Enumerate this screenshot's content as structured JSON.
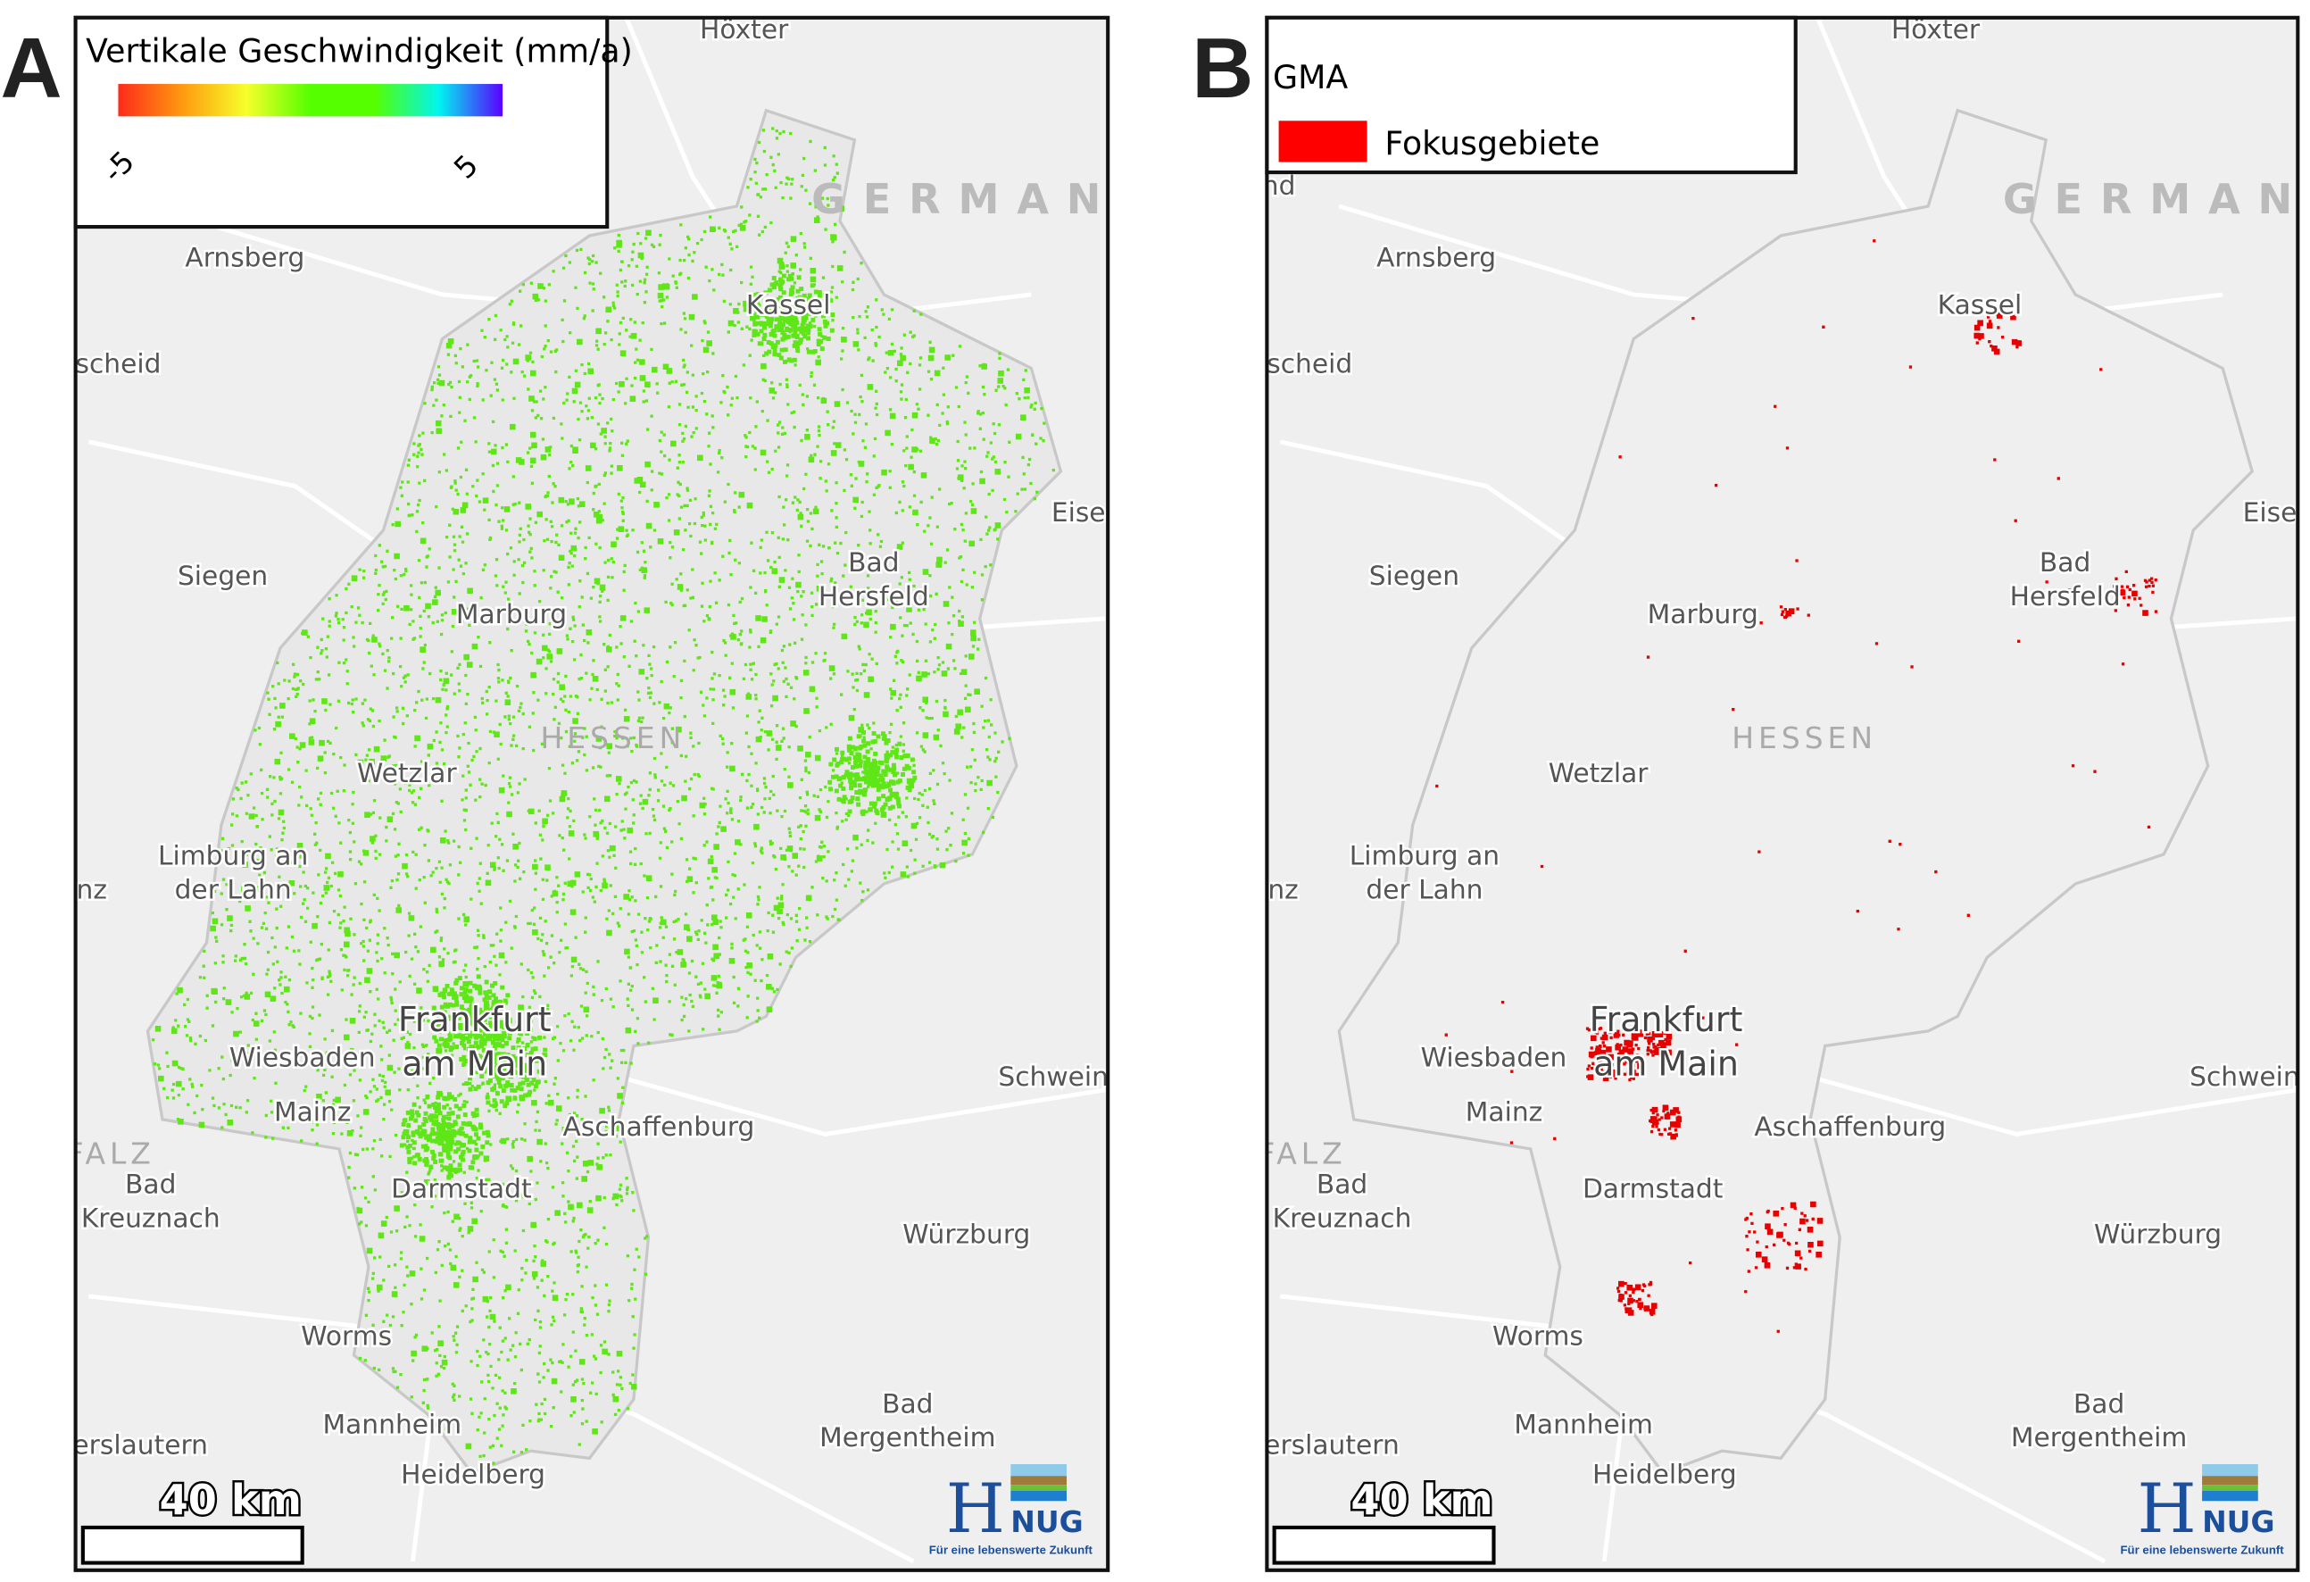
{
  "panels": [
    {
      "letter": "A",
      "legend": {
        "title": "Vertikale Geschwindigkeit (mm/a)",
        "min_label": "-5",
        "max_label": "5",
        "colors": [
          "#ff2a1a",
          "#ff9a10",
          "#f6ff2a",
          "#55ff00",
          "#55ff00",
          "#00f5f0",
          "#5a00ff"
        ]
      },
      "point_color": "#5ee616"
    },
    {
      "letter": "B",
      "legend": {
        "title": "GMA",
        "item_label": "Fokusgebiete",
        "item_color": "#ff0000"
      },
      "point_color": "#e60000"
    }
  ],
  "map": {
    "country_label": "GERMAN",
    "region_label": "HESSEN",
    "cities": [
      "Höxter",
      "Arnsberg",
      "scheid",
      "Kassel",
      "Siegen",
      "Marburg",
      "Bad",
      "Hersfeld",
      "Eise",
      "Wetzlar",
      "Limburg an",
      "der Lahn",
      "nz",
      "Wiesbaden",
      "Mainz",
      "Schwein",
      "Aschaffenburg",
      "Bad",
      "Kreuznach",
      "Darmstadt",
      "Würzburg",
      "Worms",
      "Bad",
      "Mergentheim",
      "Mannheim",
      "erslautern",
      "Heidelberg"
    ],
    "cities_big": [
      "Frankfurt",
      "am Main"
    ],
    "region_falz": "FALZ",
    "panel_b_extra": "nd"
  },
  "scale_bar": {
    "label": "40 km"
  },
  "logo": {
    "text": "HLNUG",
    "h": "H",
    "l": "L",
    "nug": "NUG",
    "tagline": "Für eine lebenswerte Zukunft"
  }
}
